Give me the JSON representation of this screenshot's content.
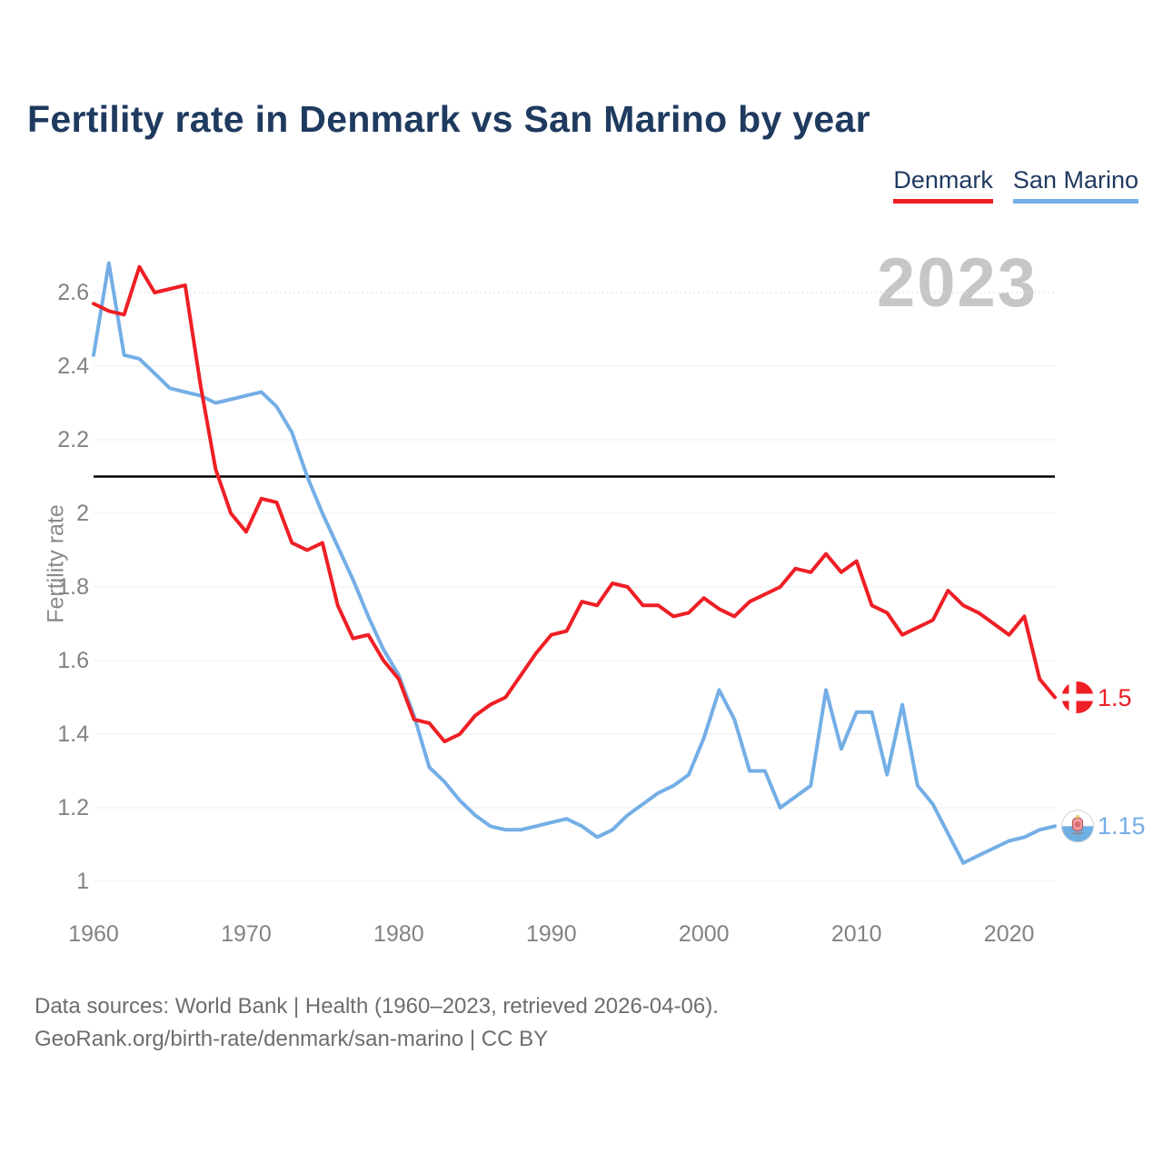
{
  "title": "Fertility rate in Denmark vs San Marino by year",
  "watermark": "2023",
  "legend": [
    {
      "label": "Denmark",
      "color": "#ee1f25"
    },
    {
      "label": "San Marino",
      "color": "#74aee6"
    }
  ],
  "y_axis": {
    "label": "Fertility rate",
    "ticks": [
      1,
      1.2,
      1.4,
      1.6,
      1.8,
      2,
      2.2,
      2.4,
      2.6
    ],
    "tick_labels": [
      "1",
      "1.2",
      "1.4",
      "1.6",
      "1.8",
      "2",
      "2.2",
      "2.4",
      "2.6"
    ]
  },
  "x_axis": {
    "ticks": [
      1960,
      1970,
      1980,
      1990,
      2000,
      2010,
      2020
    ]
  },
  "reference_line": {
    "value": 2.1,
    "color": "#000000"
  },
  "chart_data": {
    "type": "line",
    "title": "Fertility rate in Denmark vs San Marino by year",
    "ylabel": "Fertility rate",
    "ylim": [
      1.0,
      2.7
    ],
    "grid": true,
    "legend_position": "top-right",
    "x": [
      1960,
      1961,
      1962,
      1963,
      1964,
      1965,
      1966,
      1967,
      1968,
      1969,
      1970,
      1971,
      1972,
      1973,
      1974,
      1975,
      1976,
      1977,
      1978,
      1979,
      1980,
      1981,
      1982,
      1983,
      1984,
      1985,
      1986,
      1987,
      1988,
      1989,
      1990,
      1991,
      1992,
      1993,
      1994,
      1995,
      1996,
      1997,
      1998,
      1999,
      2000,
      2001,
      2002,
      2003,
      2004,
      2005,
      2006,
      2007,
      2008,
      2009,
      2010,
      2011,
      2012,
      2013,
      2014,
      2015,
      2016,
      2017,
      2018,
      2019,
      2020,
      2021,
      2022,
      2023
    ],
    "series": [
      {
        "name": "Denmark",
        "color": "#ee1f25",
        "end_label": "1.5",
        "end_value": 1.5,
        "values": [
          2.57,
          2.55,
          2.54,
          2.67,
          2.6,
          2.61,
          2.62,
          2.35,
          2.12,
          2.0,
          1.95,
          2.04,
          2.03,
          1.92,
          1.9,
          1.92,
          1.75,
          1.66,
          1.67,
          1.6,
          1.55,
          1.44,
          1.43,
          1.38,
          1.4,
          1.45,
          1.48,
          1.5,
          1.56,
          1.62,
          1.67,
          1.68,
          1.76,
          1.75,
          1.81,
          1.8,
          1.75,
          1.75,
          1.72,
          1.73,
          1.77,
          1.74,
          1.72,
          1.76,
          1.78,
          1.8,
          1.85,
          1.84,
          1.89,
          1.84,
          1.87,
          1.75,
          1.73,
          1.67,
          1.69,
          1.71,
          1.79,
          1.75,
          1.73,
          1.7,
          1.67,
          1.72,
          1.55,
          1.5
        ]
      },
      {
        "name": "San Marino",
        "color": "#74aee6",
        "end_label": "1.15",
        "end_value": 1.15,
        "values": [
          2.43,
          2.68,
          2.43,
          2.42,
          2.38,
          2.34,
          2.33,
          2.32,
          2.3,
          2.31,
          2.32,
          2.33,
          2.29,
          2.22,
          2.1,
          2.0,
          1.91,
          1.82,
          1.72,
          1.63,
          1.56,
          1.45,
          1.31,
          1.27,
          1.22,
          1.18,
          1.15,
          1.14,
          1.14,
          1.15,
          1.16,
          1.17,
          1.15,
          1.12,
          1.14,
          1.18,
          1.21,
          1.24,
          1.26,
          1.29,
          1.39,
          1.52,
          1.44,
          1.3,
          1.3,
          1.2,
          1.23,
          1.26,
          1.52,
          1.36,
          1.46,
          1.46,
          1.29,
          1.48,
          1.26,
          1.21,
          1.13,
          1.05,
          1.07,
          1.09,
          1.11,
          1.12,
          1.14,
          1.15
        ]
      }
    ]
  },
  "source": {
    "line1": "Data sources: World Bank | Health (1960–2023, retrieved 2026-04-06).",
    "line2": "GeoRank.org/birth-rate/denmark/san-marino | CC BY"
  }
}
